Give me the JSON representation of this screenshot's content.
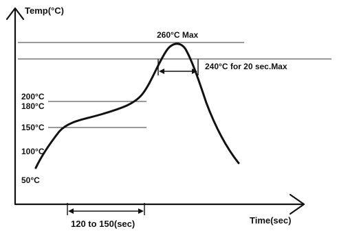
{
  "axes": {
    "y_label": "Temp(°C)",
    "x_label": "Time(sec)"
  },
  "y_ticks": [
    "200°C",
    "180°C",
    "150°C",
    "100°C",
    "50°C"
  ],
  "annotations": {
    "peak": "260°C Max",
    "dwell": "240°C for 20 sec.Max",
    "preheat": "120 to 150(sec)"
  },
  "colors": {
    "ink": "#111111",
    "background": "#ffffff"
  }
}
